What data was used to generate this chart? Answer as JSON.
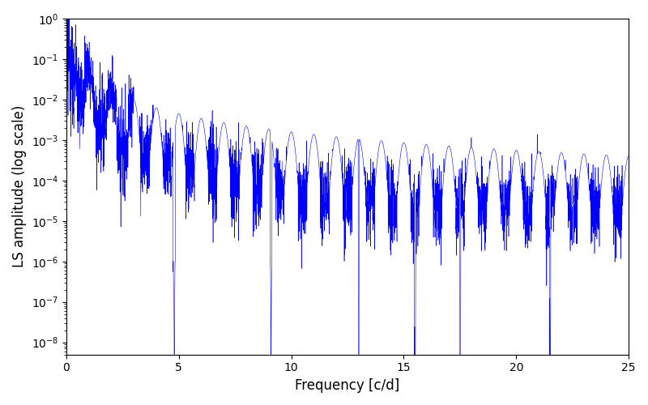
{
  "xlabel": "Frequency [c/d]",
  "ylabel": "LS amplitude (log scale)",
  "line_color": "#0000ff",
  "xlim": [
    0,
    25
  ],
  "ylim": [
    5e-09,
    1.0
  ],
  "background_color": "#ffffff",
  "figsize": [
    8.0,
    5.0
  ],
  "dpi": 100,
  "seed": 12345,
  "n_points": 5000,
  "freq_max": 25.0,
  "linewidth": 0.4
}
